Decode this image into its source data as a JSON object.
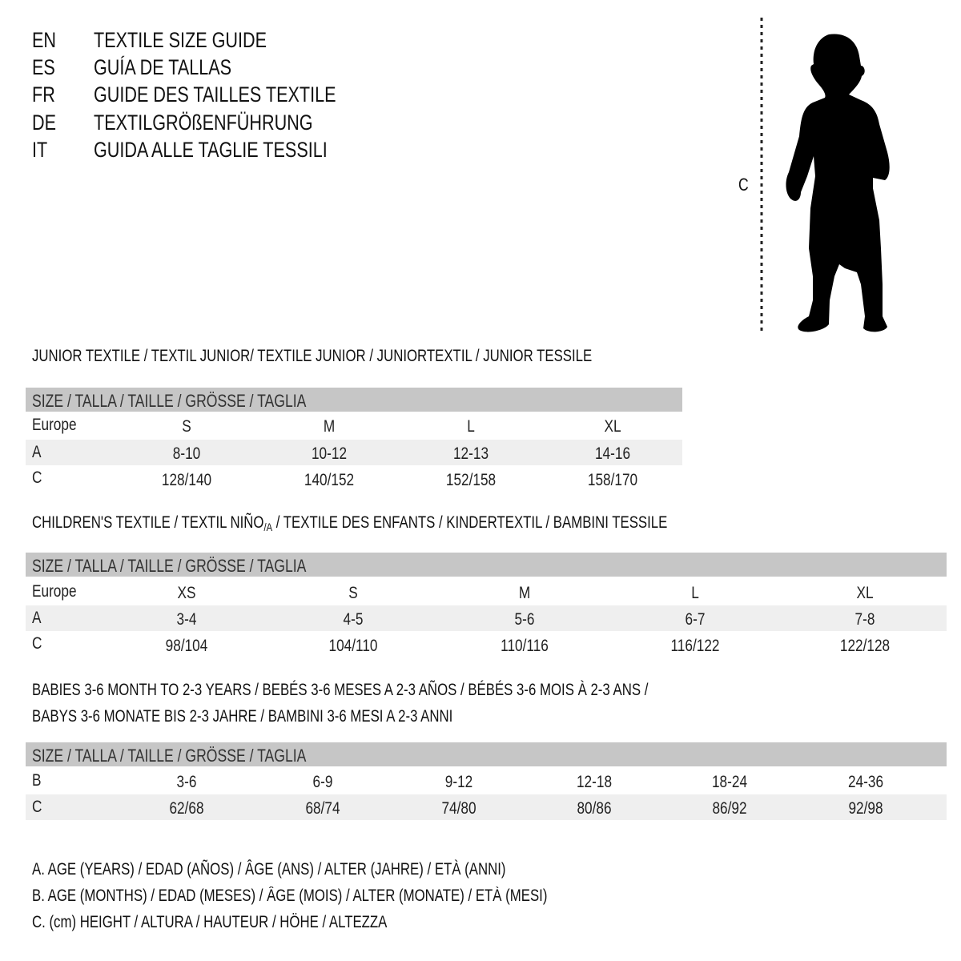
{
  "languages": [
    {
      "code": "EN",
      "title": "TEXTILE SIZE GUIDE"
    },
    {
      "code": "ES",
      "title": "GUÍA DE TALLAS"
    },
    {
      "code": "FR",
      "title": "GUIDE DES TAILLES TEXTILE"
    },
    {
      "code": "DE",
      "title": "TEXTILGRÖßENFÜHRUNG"
    },
    {
      "code": "IT",
      "title": "GUIDA ALLE TAGLIE TESSILI"
    }
  ],
  "figure": {
    "measure_label": "C",
    "icon": "child-silhouette-icon"
  },
  "size_header": "SIZE / TALLA / TAILLE / GRÖSSE / TAGLIA",
  "junior": {
    "title": "JUNIOR TEXTILE / TEXTIL JUNIOR/ TEXTILE JUNIOR / JUNIORTEXTIL / JUNIOR TESSILE",
    "rows": [
      {
        "label": "Europe",
        "values": [
          "S",
          "M",
          "L",
          "XL"
        ]
      },
      {
        "label": "A",
        "values": [
          "8-10",
          "10-12",
          "12-13",
          "14-16"
        ]
      },
      {
        "label": "C",
        "values": [
          "128/140",
          "140/152",
          "152/158",
          "158/170"
        ]
      }
    ]
  },
  "children": {
    "title_a": "CHILDREN'S TEXTILE / TEXTIL NIÑO",
    "title_sub": "/A",
    "title_b": " / TEXTILE DES ENFANTS / KINDERTEXTIL / BAMBINI TESSILE",
    "rows": [
      {
        "label": "Europe",
        "values": [
          "XS",
          "S",
          "M",
          "L",
          "XL"
        ]
      },
      {
        "label": "A",
        "values": [
          "3-4",
          "4-5",
          "5-6",
          "6-7",
          "7-8"
        ]
      },
      {
        "label": "C",
        "values": [
          "98/104",
          "104/110",
          "110/116",
          "116/122",
          "122/128"
        ]
      }
    ]
  },
  "babies": {
    "title_line1": "BABIES 3-6 MONTH TO 2-3 YEARS / BEBÉS 3-6 MESES A 2-3 AÑOS / BÉBÉS 3-6 MOIS À 2-3 ANS /",
    "title_line2": "BABYS 3-6 MONATE BIS 2-3 JAHRE / BAMBINI 3-6 MESI A 2-3 ANNI",
    "rows": [
      {
        "label": "B",
        "values": [
          "3-6",
          "6-9",
          "9-12",
          "12-18",
          "18-24",
          "24-36"
        ]
      },
      {
        "label": "C",
        "values": [
          "62/68",
          "68/74",
          "74/80",
          "80/86",
          "86/92",
          "92/98"
        ]
      }
    ]
  },
  "legend": [
    "A. AGE (YEARS) / EDAD (AÑOS) / ÂGE (ANS) / ALTER (JAHRE) / ETÀ (ANNI)",
    "B. AGE (MONTHS) / EDAD (MESES) / ÂGE (MOIS) / ALTER (MONATE) / ETÀ (MESI)",
    "C. (cm) HEIGHT / ALTURA / HAUTEUR / HÖHE / ALTEZZA"
  ],
  "colors": {
    "header_bar": "#c6c6c6",
    "row_shade": "#efefef",
    "text": "#111111"
  }
}
